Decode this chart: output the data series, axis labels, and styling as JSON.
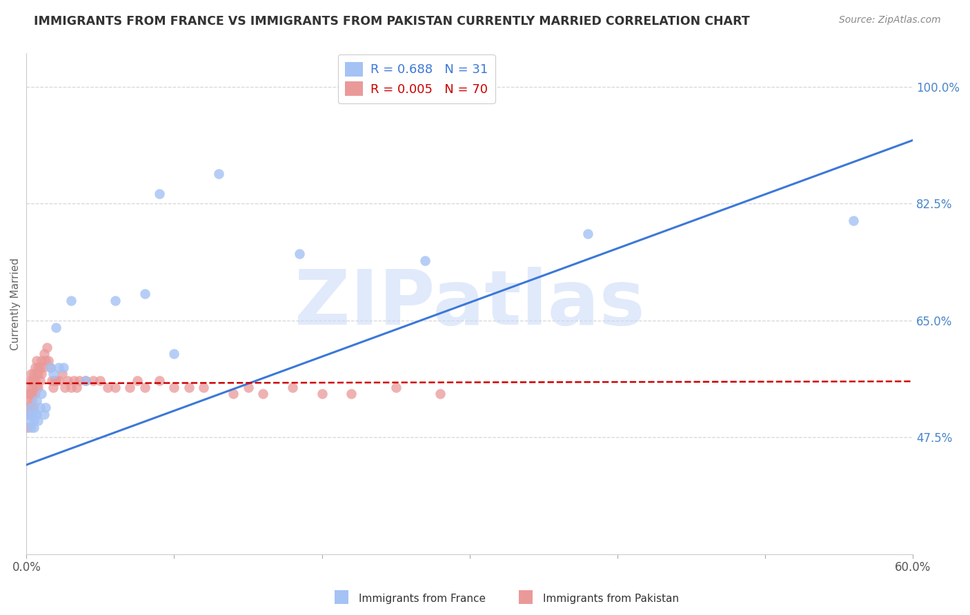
{
  "title": "IMMIGRANTS FROM FRANCE VS IMMIGRANTS FROM PAKISTAN CURRENTLY MARRIED CORRELATION CHART",
  "source": "Source: ZipAtlas.com",
  "ylabel": "Currently Married",
  "xlim": [
    0.0,
    0.6
  ],
  "ylim": [
    0.3,
    1.05
  ],
  "france_R": 0.688,
  "france_N": 31,
  "pakistan_R": 0.005,
  "pakistan_N": 70,
  "france_color": "#a4c2f4",
  "pakistan_color": "#ea9999",
  "france_line_color": "#3c78d8",
  "pakistan_line_color": "#cc0000",
  "grid_color": "#cccccc",
  "background_color": "#ffffff",
  "title_color": "#333333",
  "tick_color_right": "#4a86c8",
  "watermark_color": "#c9daf8",
  "watermark_text": "ZIPatlas",
  "france_x": [
    0.001,
    0.002,
    0.003,
    0.003,
    0.004,
    0.005,
    0.005,
    0.006,
    0.007,
    0.007,
    0.008,
    0.009,
    0.01,
    0.012,
    0.013,
    0.016,
    0.018,
    0.02,
    0.022,
    0.025,
    0.03,
    0.04,
    0.06,
    0.08,
    0.09,
    0.1,
    0.13,
    0.185,
    0.27,
    0.38,
    0.56
  ],
  "france_y": [
    0.51,
    0.5,
    0.49,
    0.52,
    0.51,
    0.5,
    0.49,
    0.51,
    0.51,
    0.53,
    0.5,
    0.52,
    0.54,
    0.51,
    0.52,
    0.58,
    0.57,
    0.64,
    0.58,
    0.58,
    0.68,
    0.56,
    0.68,
    0.69,
    0.84,
    0.6,
    0.87,
    0.75,
    0.74,
    0.78,
    0.8
  ],
  "pakistan_x": [
    0.001,
    0.001,
    0.001,
    0.001,
    0.002,
    0.002,
    0.002,
    0.002,
    0.003,
    0.003,
    0.003,
    0.003,
    0.004,
    0.004,
    0.004,
    0.005,
    0.005,
    0.005,
    0.005,
    0.006,
    0.006,
    0.006,
    0.007,
    0.007,
    0.007,
    0.008,
    0.008,
    0.008,
    0.009,
    0.009,
    0.01,
    0.01,
    0.011,
    0.012,
    0.013,
    0.014,
    0.015,
    0.016,
    0.017,
    0.018,
    0.019,
    0.02,
    0.022,
    0.024,
    0.026,
    0.028,
    0.03,
    0.032,
    0.034,
    0.036,
    0.04,
    0.045,
    0.05,
    0.055,
    0.06,
    0.07,
    0.075,
    0.08,
    0.09,
    0.1,
    0.11,
    0.12,
    0.14,
    0.15,
    0.16,
    0.18,
    0.2,
    0.22,
    0.25,
    0.28
  ],
  "pakistan_y": [
    0.49,
    0.51,
    0.52,
    0.54,
    0.51,
    0.53,
    0.54,
    0.56,
    0.52,
    0.54,
    0.55,
    0.57,
    0.53,
    0.55,
    0.56,
    0.52,
    0.54,
    0.56,
    0.57,
    0.54,
    0.56,
    0.58,
    0.55,
    0.57,
    0.59,
    0.55,
    0.57,
    0.58,
    0.56,
    0.58,
    0.57,
    0.59,
    0.58,
    0.6,
    0.59,
    0.61,
    0.59,
    0.58,
    0.56,
    0.55,
    0.56,
    0.56,
    0.56,
    0.57,
    0.55,
    0.56,
    0.55,
    0.56,
    0.55,
    0.56,
    0.56,
    0.56,
    0.56,
    0.55,
    0.55,
    0.55,
    0.56,
    0.55,
    0.56,
    0.55,
    0.55,
    0.55,
    0.54,
    0.55,
    0.54,
    0.55,
    0.54,
    0.54,
    0.55,
    0.54
  ],
  "france_trend_x": [
    0.0,
    0.6
  ],
  "france_trend_y": [
    0.434,
    0.92
  ],
  "pakistan_trend_x": [
    0.0,
    0.6
  ],
  "pakistan_trend_y": [
    0.556,
    0.559
  ],
  "ytick_vals": [
    0.475,
    0.65,
    0.825,
    1.0
  ],
  "ytick_strs": [
    "47.5%",
    "65.0%",
    "82.5%",
    "100.0%"
  ],
  "xtick_vals": [
    0.0,
    0.1,
    0.2,
    0.3,
    0.4,
    0.5,
    0.6
  ],
  "xtick_strs": [
    "0.0%",
    "",
    "",
    "",
    "",
    "",
    "60.0%"
  ]
}
